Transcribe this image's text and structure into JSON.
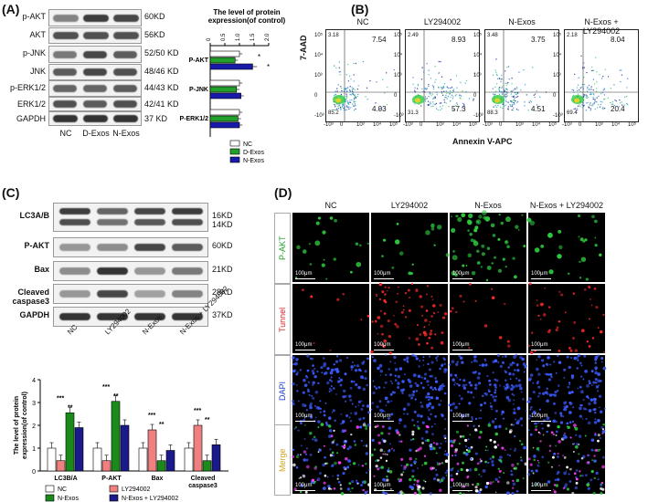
{
  "panels": {
    "a": "(A)",
    "b": "(B)",
    "c": "(C)",
    "d": "(D)"
  },
  "panel_a": {
    "blots": [
      {
        "label": "p-AKT",
        "kd": "60KD"
      },
      {
        "label": "AKT",
        "kd": "56KD"
      },
      {
        "label": "p-JNK",
        "kd": "52/50 KD"
      },
      {
        "label": "JNK",
        "kd": "48/46 KD"
      },
      {
        "label": "p-ERK1/2",
        "kd": "44/43 KD"
      },
      {
        "label": "ERK1/2",
        "kd": "42/41 KD"
      },
      {
        "label": "GAPDH",
        "kd": "37 KD"
      }
    ],
    "groups": [
      "NC",
      "D-Exos",
      "N-Exos"
    ]
  },
  "chart_data": [
    {
      "type": "bar",
      "orientation": "horizontal",
      "title": "The level of protein expression(of control)",
      "categories": [
        "P-AKT",
        "P-JNK",
        "P-ERK1/2"
      ],
      "xlim": [
        0,
        2.0
      ],
      "ticks": [
        "0",
        "0.5",
        "1.0",
        "1.5",
        "2.0"
      ],
      "series": [
        {
          "name": "NC",
          "color": "#ffffff",
          "values": [
            1.0,
            1.0,
            1.0
          ]
        },
        {
          "name": "D-Exos",
          "color": "#22a02a",
          "values": [
            0.85,
            0.9,
            0.95
          ]
        },
        {
          "name": "N-Exos",
          "color": "#1a1aaa",
          "values": [
            1.45,
            1.05,
            1.0
          ]
        }
      ],
      "errors": [
        [
          0.1,
          0.1,
          0.1
        ],
        [
          0.1,
          0.1,
          0.1
        ],
        [
          0.15,
          0.1,
          0.1
        ]
      ],
      "annotations": [
        "*",
        "*"
      ],
      "legend": "bottom"
    },
    {
      "type": "bar",
      "ylabel": "The level of protein expression(of control)",
      "categories": [
        "LC3B/A",
        "P-AKT",
        "Bax",
        "Cleaved caspase3"
      ],
      "ylim": [
        0,
        4
      ],
      "ticks": [
        "0",
        "1",
        "2",
        "3",
        "4"
      ],
      "series": [
        {
          "name": "NC",
          "color": "#ffffff",
          "values": [
            1.0,
            1.0,
            1.0,
            1.0
          ]
        },
        {
          "name": "LY294002",
          "color": "#f08080",
          "values": [
            0.45,
            0.45,
            1.8,
            2.0
          ]
        },
        {
          "name": "N-Exos",
          "color": "#1a8a1a",
          "values": [
            2.55,
            3.05,
            0.45,
            0.45
          ]
        },
        {
          "name": "N-Exos + LY294002",
          "color": "#1a1a8a",
          "values": [
            1.9,
            2.0,
            0.9,
            1.15
          ]
        }
      ],
      "annotations": [
        "***",
        "**"
      ],
      "legend": "bottom"
    }
  ],
  "panel_b": {
    "plots": [
      {
        "title": "NC",
        "ur": "7.54",
        "lr": "4.03",
        "ul": "3.18",
        "ll": "85.2"
      },
      {
        "title": "LY294002",
        "ur": "8.93",
        "lr": "57.3",
        "ul": "2.49",
        "ll": "31.3"
      },
      {
        "title": "N-Exos",
        "ur": "3.75",
        "lr": "4.51",
        "ul": "3.48",
        "ll": "88.3"
      },
      {
        "title": "N-Exos + LY294002",
        "ur": "8.04",
        "lr": "20.4",
        "ul": "2.18",
        "ll": "69.4"
      }
    ],
    "ylabel": "7-AAD",
    "xlabel": "Annexin V-APC",
    "yticks": [
      "10⁵",
      "10⁴",
      "10³",
      "0",
      "-10³"
    ],
    "xticks": [
      "-10³",
      "0",
      "10³",
      "10⁴",
      "10⁵"
    ]
  },
  "panel_c": {
    "blots": [
      {
        "label": "LC3A/B",
        "kd": "16KD\n14KD"
      },
      {
        "label": "P-AKT",
        "kd": "60KD"
      },
      {
        "label": "Bax",
        "kd": "21KD"
      },
      {
        "label": "Cleaved caspase3",
        "kd": "28KD"
      },
      {
        "label": "GAPDH",
        "kd": "37KD"
      }
    ],
    "groups": [
      "NC",
      "LY294002",
      "N-Exos",
      "N-Exos + LY294002"
    ]
  },
  "panel_d": {
    "columns": [
      "NC",
      "LY294002",
      "N-Exos",
      "N-Exos + LY294002"
    ],
    "rows": [
      {
        "label": "P-AKT",
        "color": "#22a02a",
        "dot": "#2ecc40"
      },
      {
        "label": "Tunnel",
        "color": "#d62020",
        "dot": "#ff2a2a"
      },
      {
        "label": "DAPI",
        "color": "#2244cc",
        "dot": "#3b5bff"
      },
      {
        "label": "Merge",
        "color": "#d4a020",
        "dot": "#ff40ff"
      }
    ],
    "scale": "100μm"
  }
}
